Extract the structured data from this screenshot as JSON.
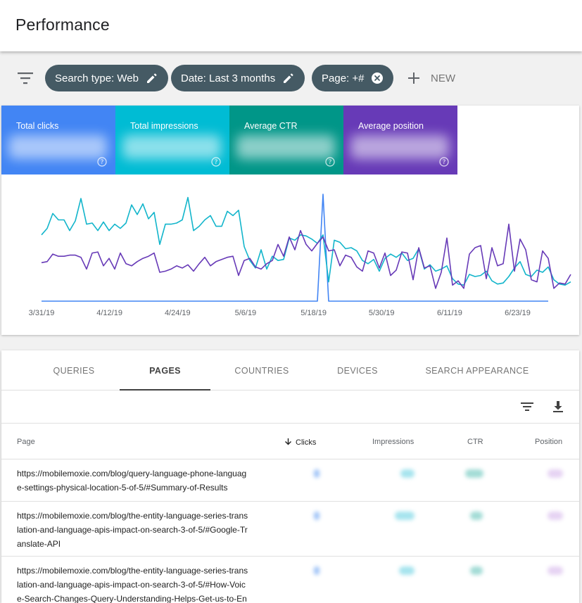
{
  "header": {
    "title": "Performance"
  },
  "filters": {
    "chips": [
      {
        "label": "Search type: Web",
        "icon": "pencil-icon"
      },
      {
        "label": "Date: Last 3 months",
        "icon": "pencil-icon"
      },
      {
        "label": "Page: +#",
        "icon": "close-circle-icon"
      }
    ],
    "new_label": "NEW"
  },
  "metrics": [
    {
      "label": "Total clicks",
      "color": "#4285f4"
    },
    {
      "label": "Total impressions",
      "color": "#00bcd4"
    },
    {
      "label": "Average CTR",
      "color": "#009688"
    },
    {
      "label": "Average position",
      "color": "#673ab7"
    }
  ],
  "chart_data": {
    "type": "line",
    "x_tick_labels": [
      "3/31/19",
      "4/12/19",
      "4/24/19",
      "5/6/19",
      "5/18/19",
      "5/30/19",
      "6/11/19",
      "6/23/19"
    ],
    "series": [
      {
        "name": "Total clicks",
        "color": "#4285f4",
        "values": [
          0,
          0,
          0,
          0,
          0,
          0,
          0,
          0,
          0,
          0,
          0,
          0,
          0,
          0,
          0,
          0,
          0,
          0,
          0,
          0,
          0,
          0,
          0,
          0,
          0,
          0,
          0,
          0,
          0,
          0,
          0,
          0,
          0,
          0,
          0,
          0,
          0,
          0,
          0,
          0,
          0,
          0,
          0,
          0,
          0,
          0,
          0,
          0,
          0,
          0,
          1,
          0,
          0,
          0,
          0,
          0,
          0,
          0,
          0,
          0,
          0,
          0,
          0,
          0,
          0,
          0,
          0,
          0,
          0,
          0,
          0,
          0,
          0,
          0,
          0,
          0,
          0,
          0,
          0,
          0,
          0,
          0,
          0,
          0,
          0,
          0,
          0,
          0,
          0,
          0,
          0
        ]
      },
      {
        "name": "Total impressions",
        "color": "#12b5cb",
        "values": [
          0.62,
          0.68,
          0.82,
          0.76,
          0.76,
          0.66,
          0.75,
          0.96,
          0.72,
          0.73,
          0.66,
          0.74,
          0.66,
          0.72,
          0.68,
          0.73,
          0.9,
          0.81,
          0.91,
          0.77,
          0.83,
          0.53,
          0.72,
          0.72,
          0.73,
          0.76,
          0.97,
          0.66,
          0.7,
          0.76,
          0.8,
          0.7,
          0.7,
          0.84,
          0.8,
          0.85,
          0.51,
          0.38,
          0.31,
          0.48,
          0.3,
          0.42,
          0.38,
          0.39,
          0.59,
          0.57,
          0.62,
          0.61,
          0.58,
          0.54,
          0.62,
          0.18,
          0.57,
          0.55,
          0.49,
          0.5,
          0.47,
          0.38,
          0.35,
          0.39,
          0.28,
          0.4,
          0.44,
          0.41,
          0.45,
          0.38,
          0.4,
          0.49,
          0.3,
          0.34,
          0.28,
          0.3,
          0.33,
          0.21,
          0.16,
          0.15,
          0.25,
          0.23,
          0.24,
          0.28,
          0.19,
          0.16,
          0.17,
          0.23,
          0.31,
          0.37,
          0.25,
          0.23,
          0.29,
          0.27,
          0.32,
          0.2,
          0.16,
          0.15,
          0.18
        ]
      },
      {
        "name": "Average position",
        "color": "#673ab7",
        "values": [
          0.36,
          0.37,
          0.44,
          0.42,
          0.42,
          0.43,
          0.43,
          0.41,
          0.3,
          0.45,
          0.46,
          0.33,
          0.4,
          0.3,
          0.45,
          0.35,
          0.33,
          0.37,
          0.4,
          0.42,
          0.45,
          0.27,
          0.28,
          0.3,
          0.33,
          0.31,
          0.34,
          0.28,
          0.35,
          0.41,
          0.33,
          0.37,
          0.39,
          0.41,
          0.42,
          0.24,
          0.38,
          0.4,
          0.32,
          0.3,
          0.35,
          0.38,
          0.53,
          0.42,
          0.6,
          0.48,
          0.66,
          0.53,
          0.47,
          0.54,
          0.6,
          0.47,
          0.48,
          0.33,
          0.43,
          0.41,
          0.32,
          0.28,
          0.47,
          0.45,
          0.31,
          0.45,
          0.24,
          0.29,
          0.46,
          0.45,
          0.2,
          0.5,
          0.31,
          0.33,
          0.12,
          0.27,
          0.59,
          0.15,
          0.19,
          0.12,
          0.44,
          0.5,
          0.52,
          0.21,
          0.5,
          0.33,
          0.35,
          0.72,
          0.28,
          0.58,
          0.48,
          0.2,
          0.18,
          0.47,
          0.4,
          0.12,
          0.17,
          0.16,
          0.25
        ]
      }
    ]
  },
  "tabs": [
    {
      "label": "QUERIES",
      "active": false
    },
    {
      "label": "PAGES",
      "active": true
    },
    {
      "label": "COUNTRIES",
      "active": false
    },
    {
      "label": "DEVICES",
      "active": false
    },
    {
      "label": "SEARCH APPEARANCE",
      "active": false
    }
  ],
  "table": {
    "columns": {
      "page": "Page",
      "clicks": "Clicks",
      "impressions": "Impressions",
      "ctr": "CTR",
      "position": "Position"
    },
    "rows": [
      {
        "page": "https://mobilemoxie.com/blog/query-language-phone-language-settings-physical-location-5-of-5/#Summary-of-Results"
      },
      {
        "page": "https://mobilemoxie.com/blog/the-entity-language-series-translation-and-language-apis-impact-on-search-3-of-5/#Google-Translate-API"
      },
      {
        "page": "https://mobilemoxie.com/blog/the-entity-language-series-translation-and-language-apis-impact-on-search-3-of-5/#How-Voice-Search-Changes-Query-Understanding-Helps-Get-us-to-Entity"
      }
    ]
  }
}
